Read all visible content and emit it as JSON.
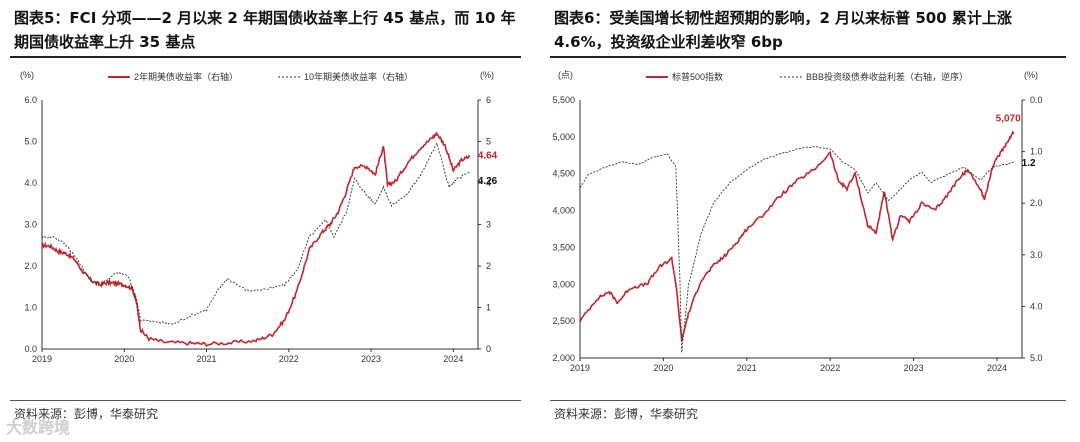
{
  "watermark": "大数跨境",
  "chart_data": [
    {
      "type": "line",
      "title": "图表5：FCI 分项——2 月以来 2 年期国债收益率上行 45 基点，而 10 年期国债收益率上升 35 基点",
      "source": "资料来源：彭博，华泰研究",
      "left_unit": "(%)",
      "right_unit": "(%)",
      "left_ticks": [
        "6.0",
        "5.0",
        "4.0",
        "3.0",
        "2.0",
        "1.0",
        "0.0"
      ],
      "right_ticks": [
        "6",
        "5",
        "4",
        "3",
        "2",
        "1",
        "0"
      ],
      "ylim": [
        0,
        6
      ],
      "x_ticks": [
        "2019",
        "2020",
        "2021",
        "2022",
        "2023",
        "2024"
      ],
      "xlim": [
        2019.0,
        2024.3
      ],
      "legend_position": "top",
      "series": [
        {
          "name": "2年期美债收益率（右轴）",
          "color": "#c0272d",
          "style": "solid",
          "end_label": "4.64",
          "points": [
            [
              2019.0,
              2.5
            ],
            [
              2019.1,
              2.48
            ],
            [
              2019.2,
              2.35
            ],
            [
              2019.3,
              2.3
            ],
            [
              2019.4,
              2.15
            ],
            [
              2019.5,
              1.85
            ],
            [
              2019.6,
              1.65
            ],
            [
              2019.7,
              1.55
            ],
            [
              2019.8,
              1.6
            ],
            [
              2019.9,
              1.58
            ],
            [
              2020.0,
              1.55
            ],
            [
              2020.1,
              1.45
            ],
            [
              2020.15,
              1.1
            ],
            [
              2020.2,
              0.45
            ],
            [
              2020.3,
              0.25
            ],
            [
              2020.5,
              0.16
            ],
            [
              2020.8,
              0.14
            ],
            [
              2021.0,
              0.12
            ],
            [
              2021.3,
              0.15
            ],
            [
              2021.6,
              0.2
            ],
            [
              2021.8,
              0.35
            ],
            [
              2021.95,
              0.7
            ],
            [
              2022.1,
              1.4
            ],
            [
              2022.25,
              2.4
            ],
            [
              2022.4,
              2.8
            ],
            [
              2022.5,
              3.0
            ],
            [
              2022.6,
              3.3
            ],
            [
              2022.7,
              3.8
            ],
            [
              2022.8,
              4.4
            ],
            [
              2022.95,
              4.4
            ],
            [
              2023.05,
              4.2
            ],
            [
              2023.15,
              4.9
            ],
            [
              2023.2,
              3.95
            ],
            [
              2023.3,
              4.05
            ],
            [
              2023.45,
              4.5
            ],
            [
              2023.6,
              4.85
            ],
            [
              2023.75,
              5.1
            ],
            [
              2023.8,
              5.2
            ],
            [
              2023.9,
              4.9
            ],
            [
              2024.0,
              4.3
            ],
            [
              2024.1,
              4.55
            ],
            [
              2024.2,
              4.64
            ]
          ]
        },
        {
          "name": "10年期美债收益率（右轴）",
          "color": "#333333",
          "style": "dashed",
          "end_label": "4.26",
          "points": [
            [
              2019.0,
              2.7
            ],
            [
              2019.15,
              2.7
            ],
            [
              2019.3,
              2.5
            ],
            [
              2019.45,
              2.1
            ],
            [
              2019.6,
              1.6
            ],
            [
              2019.75,
              1.6
            ],
            [
              2019.9,
              1.85
            ],
            [
              2020.05,
              1.75
            ],
            [
              2020.15,
              1.2
            ],
            [
              2020.2,
              0.7
            ],
            [
              2020.4,
              0.65
            ],
            [
              2020.6,
              0.6
            ],
            [
              2020.8,
              0.8
            ],
            [
              2021.0,
              0.95
            ],
            [
              2021.15,
              1.45
            ],
            [
              2021.25,
              1.7
            ],
            [
              2021.5,
              1.4
            ],
            [
              2021.75,
              1.45
            ],
            [
              2021.95,
              1.55
            ],
            [
              2022.1,
              1.9
            ],
            [
              2022.25,
              2.7
            ],
            [
              2022.45,
              3.1
            ],
            [
              2022.55,
              2.7
            ],
            [
              2022.7,
              3.3
            ],
            [
              2022.8,
              4.1
            ],
            [
              2022.95,
              3.7
            ],
            [
              2023.05,
              3.5
            ],
            [
              2023.15,
              3.9
            ],
            [
              2023.25,
              3.45
            ],
            [
              2023.45,
              3.75
            ],
            [
              2023.6,
              4.2
            ],
            [
              2023.8,
              4.95
            ],
            [
              2023.95,
              3.9
            ],
            [
              2024.05,
              4.1
            ],
            [
              2024.2,
              4.26
            ]
          ]
        }
      ]
    },
    {
      "type": "line",
      "title": "图表6：受美国增长韧性超预期的影响，2 月以来标普 500 累计上涨 4.6%，投资级企业利差收窄 6bp",
      "source": "资料来源：彭博，华泰研究",
      "left_unit": "(点)",
      "right_unit": "(%)",
      "left_ticks": [
        "5,500",
        "5,000",
        "4,500",
        "4,000",
        "3,500",
        "3,000",
        "2,500",
        "2,000"
      ],
      "right_ticks": [
        "0.0",
        "1.0",
        "2.0",
        "3.0",
        "4.0",
        "5.0"
      ],
      "left_ylim": [
        2000,
        5500
      ],
      "right_ylim_inverted": [
        0,
        5
      ],
      "x_ticks": [
        "2019",
        "2020",
        "2021",
        "2022",
        "2023",
        "2024"
      ],
      "xlim": [
        2019.0,
        2024.3
      ],
      "legend_position": "top",
      "series": [
        {
          "name": "标普500指数",
          "axis": "left",
          "color": "#c0272d",
          "style": "solid",
          "end_label": "5,070",
          "points": [
            [
              2019.0,
              2500
            ],
            [
              2019.2,
              2800
            ],
            [
              2019.35,
              2900
            ],
            [
              2019.45,
              2750
            ],
            [
              2019.6,
              2950
            ],
            [
              2019.8,
              3000
            ],
            [
              2019.95,
              3230
            ],
            [
              2020.1,
              3350
            ],
            [
              2020.15,
              3000
            ],
            [
              2020.22,
              2240
            ],
            [
              2020.3,
              2600
            ],
            [
              2020.45,
              3050
            ],
            [
              2020.6,
              3250
            ],
            [
              2020.75,
              3400
            ],
            [
              2020.9,
              3600
            ],
            [
              2021.0,
              3750
            ],
            [
              2021.2,
              3950
            ],
            [
              2021.4,
              4200
            ],
            [
              2021.6,
              4400
            ],
            [
              2021.8,
              4550
            ],
            [
              2022.0,
              4780
            ],
            [
              2022.1,
              4400
            ],
            [
              2022.2,
              4300
            ],
            [
              2022.3,
              4500
            ],
            [
              2022.45,
              3800
            ],
            [
              2022.55,
              3700
            ],
            [
              2022.65,
              4250
            ],
            [
              2022.75,
              3600
            ],
            [
              2022.85,
              3950
            ],
            [
              2022.95,
              3850
            ],
            [
              2023.1,
              4100
            ],
            [
              2023.25,
              4000
            ],
            [
              2023.4,
              4200
            ],
            [
              2023.55,
              4450
            ],
            [
              2023.65,
              4550
            ],
            [
              2023.8,
              4300
            ],
            [
              2023.85,
              4150
            ],
            [
              2023.95,
              4600
            ],
            [
              2024.05,
              4800
            ],
            [
              2024.15,
              4980
            ],
            [
              2024.2,
              5070
            ]
          ]
        },
        {
          "name": "BBB投资级债券收益利差（右轴，逆序）",
          "axis": "right",
          "color": "#333333",
          "style": "dashed",
          "end_label": "1.2",
          "points": [
            [
              2019.0,
              1.7
            ],
            [
              2019.1,
              1.45
            ],
            [
              2019.3,
              1.3
            ],
            [
              2019.5,
              1.2
            ],
            [
              2019.7,
              1.25
            ],
            [
              2019.9,
              1.1
            ],
            [
              2020.05,
              1.05
            ],
            [
              2020.15,
              1.3
            ],
            [
              2020.2,
              3.6
            ],
            [
              2020.22,
              4.9
            ],
            [
              2020.3,
              3.6
            ],
            [
              2020.45,
              2.6
            ],
            [
              2020.6,
              2.0
            ],
            [
              2020.8,
              1.6
            ],
            [
              2021.0,
              1.35
            ],
            [
              2021.2,
              1.15
            ],
            [
              2021.4,
              1.05
            ],
            [
              2021.6,
              0.95
            ],
            [
              2021.8,
              0.9
            ],
            [
              2022.0,
              0.95
            ],
            [
              2022.15,
              1.2
            ],
            [
              2022.3,
              1.35
            ],
            [
              2022.45,
              1.8
            ],
            [
              2022.55,
              1.6
            ],
            [
              2022.7,
              1.95
            ],
            [
              2022.8,
              1.8
            ],
            [
              2022.95,
              1.55
            ],
            [
              2023.1,
              1.4
            ],
            [
              2023.2,
              1.6
            ],
            [
              2023.4,
              1.45
            ],
            [
              2023.6,
              1.3
            ],
            [
              2023.8,
              1.55
            ],
            [
              2023.95,
              1.3
            ],
            [
              2024.1,
              1.25
            ],
            [
              2024.2,
              1.2
            ]
          ]
        }
      ]
    }
  ]
}
